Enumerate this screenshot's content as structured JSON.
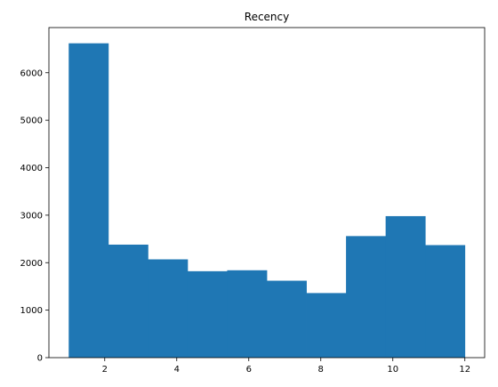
{
  "chart_data": {
    "type": "bar",
    "title": "Recency",
    "xlabel": "",
    "ylabel": "",
    "bin_edges": [
      1.0,
      2.1,
      3.2,
      4.3,
      5.4,
      6.5,
      7.6,
      8.7,
      9.8,
      10.9,
      12.0
    ],
    "values": [
      6620,
      2380,
      2070,
      1820,
      1840,
      1620,
      1360,
      2560,
      2980,
      2370
    ],
    "xlim": [
      0.45,
      12.55
    ],
    "ylim": [
      0,
      6951
    ],
    "xticks": [
      2,
      4,
      6,
      8,
      10,
      12
    ],
    "yticks": [
      0,
      1000,
      2000,
      3000,
      4000,
      5000,
      6000
    ],
    "grid": false,
    "bar_color": "#1f77b4"
  }
}
